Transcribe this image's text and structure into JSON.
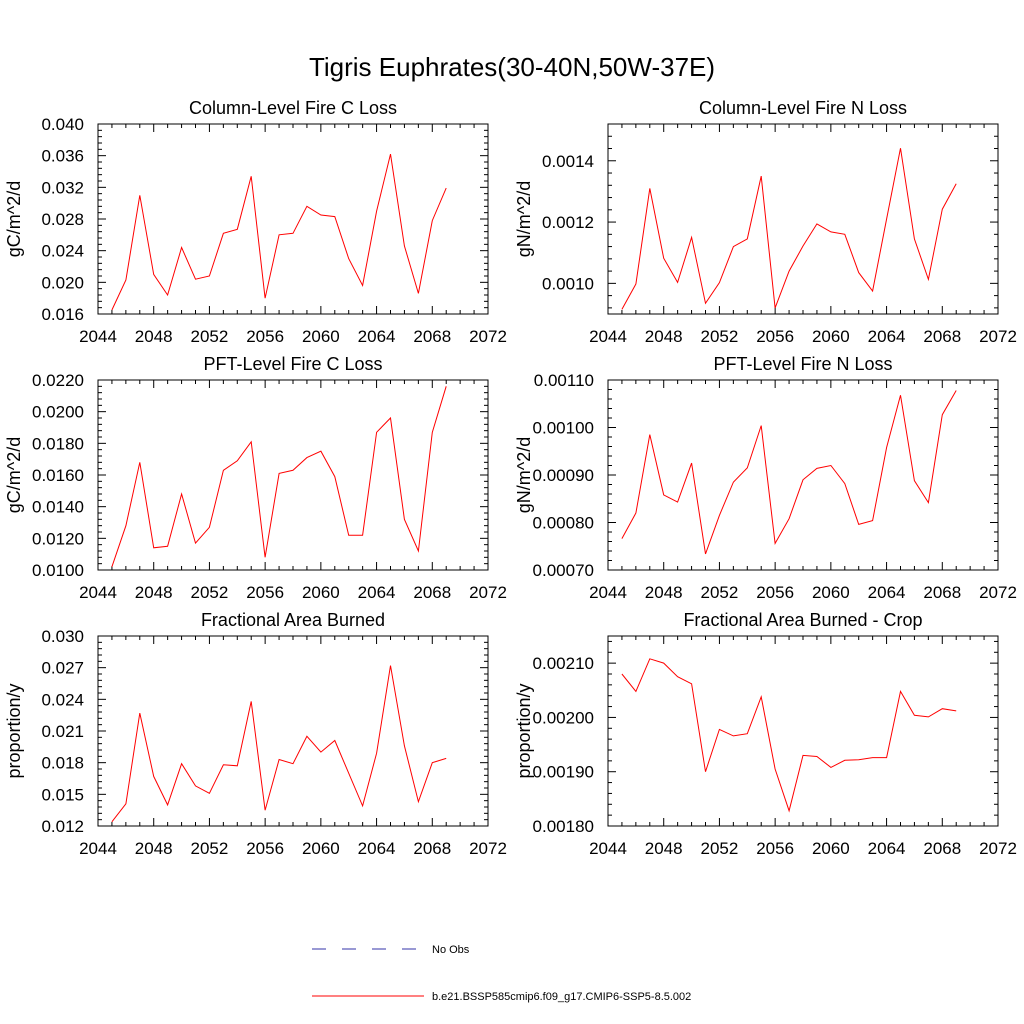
{
  "title": "Tigris Euphrates(30-40N,50W-37E)",
  "chart_data": [
    {
      "type": "line",
      "title": "Column-Level Fire C Loss",
      "ylabel": "gC/m^2/d",
      "xlim": [
        2044,
        2072
      ],
      "xticks": [
        "2044",
        "2048",
        "2052",
        "2056",
        "2060",
        "2064",
        "2068",
        "2072"
      ],
      "ylim": [
        0.016,
        0.04
      ],
      "yticks": [
        "0.016",
        "0.020",
        "0.024",
        "0.028",
        "0.032",
        "0.036",
        "0.040"
      ],
      "x": [
        2045,
        2046,
        2047,
        2048,
        2049,
        2050,
        2051,
        2052,
        2053,
        2054,
        2055,
        2056,
        2057,
        2058,
        2059,
        2060,
        2061,
        2062,
        2063,
        2064,
        2065,
        2066,
        2067,
        2068,
        2069
      ],
      "series": [
        {
          "name": "b.e21.BSSP585cmip6.f09_g17.CMIP6-SSP5-8.5.002",
          "color": "#ff0000",
          "values": [
            0.0165,
            0.0203,
            0.031,
            0.021,
            0.0184,
            0.0244,
            0.0204,
            0.0208,
            0.0262,
            0.0267,
            0.0334,
            0.018,
            0.026,
            0.0262,
            0.0296,
            0.0285,
            0.0283,
            0.023,
            0.0196,
            0.029,
            0.0362,
            0.0246,
            0.0186,
            0.0278,
            0.0319
          ]
        }
      ]
    },
    {
      "type": "line",
      "title": "Column-Level Fire N Loss",
      "ylabel": "gN/m^2/d",
      "xlim": [
        2044,
        2072
      ],
      "xticks": [
        "2044",
        "2048",
        "2052",
        "2056",
        "2060",
        "2064",
        "2068",
        "2072"
      ],
      "ylim": [
        0.0009,
        0.00152
      ],
      "yticks": [
        "0.0010",
        "0.0012",
        "0.0014"
      ],
      "ytick_values": [
        0.001,
        0.0012,
        0.0014
      ],
      "x": [
        2045,
        2046,
        2047,
        2048,
        2049,
        2050,
        2051,
        2052,
        2053,
        2054,
        2055,
        2056,
        2057,
        2058,
        2059,
        2060,
        2061,
        2062,
        2063,
        2064,
        2065,
        2066,
        2067,
        2068,
        2069
      ],
      "series": [
        {
          "name": "b.e21.BSSP585cmip6.f09_g17.CMIP6-SSP5-8.5.002",
          "color": "#ff0000",
          "values": [
            0.000915,
            0.000998,
            0.00131,
            0.001082,
            0.001003,
            0.00115,
            0.000935,
            0.001002,
            0.00112,
            0.001145,
            0.00135,
            0.00092,
            0.00104,
            0.001122,
            0.001194,
            0.001168,
            0.00116,
            0.001035,
            0.000975,
            0.00121,
            0.001441,
            0.001145,
            0.001013,
            0.001242,
            0.001325
          ]
        }
      ]
    },
    {
      "type": "line",
      "title": "PFT-Level Fire C Loss",
      "ylabel": "gC/m^2/d",
      "xlim": [
        2044,
        2072
      ],
      "xticks": [
        "2044",
        "2048",
        "2052",
        "2056",
        "2060",
        "2064",
        "2068",
        "2072"
      ],
      "ylim": [
        0.01,
        0.022
      ],
      "yticks": [
        "0.0100",
        "0.0120",
        "0.0140",
        "0.0160",
        "0.0180",
        "0.0200",
        "0.0220"
      ],
      "x": [
        2045,
        2046,
        2047,
        2048,
        2049,
        2050,
        2051,
        2052,
        2053,
        2054,
        2055,
        2056,
        2057,
        2058,
        2059,
        2060,
        2061,
        2062,
        2063,
        2064,
        2065,
        2066,
        2067,
        2068,
        2069
      ],
      "series": [
        {
          "name": "b.e21.BSSP585cmip6.f09_g17.CMIP6-SSP5-8.5.002",
          "color": "#ff0000",
          "values": [
            0.0102,
            0.0128,
            0.0168,
            0.0114,
            0.0115,
            0.0148,
            0.0117,
            0.0127,
            0.0163,
            0.0169,
            0.0181,
            0.0108,
            0.0161,
            0.0163,
            0.0171,
            0.0175,
            0.0159,
            0.0122,
            0.0122,
            0.0187,
            0.0196,
            0.0132,
            0.0112,
            0.0187,
            0.0216
          ]
        }
      ]
    },
    {
      "type": "line",
      "title": "PFT-Level Fire N Loss",
      "ylabel": "gN/m^2/d",
      "xlim": [
        2044,
        2072
      ],
      "xticks": [
        "2044",
        "2048",
        "2052",
        "2056",
        "2060",
        "2064",
        "2068",
        "2072"
      ],
      "ylim": [
        0.0007,
        0.0011
      ],
      "yticks": [
        "0.00070",
        "0.00080",
        "0.00090",
        "0.00100",
        "0.00110"
      ],
      "x": [
        2045,
        2046,
        2047,
        2048,
        2049,
        2050,
        2051,
        2052,
        2053,
        2054,
        2055,
        2056,
        2057,
        2058,
        2059,
        2060,
        2061,
        2062,
        2063,
        2064,
        2065,
        2066,
        2067,
        2068,
        2069
      ],
      "series": [
        {
          "name": "b.e21.BSSP585cmip6.f09_g17.CMIP6-SSP5-8.5.002",
          "color": "#ff0000",
          "values": [
            0.000766,
            0.00082,
            0.000985,
            0.000858,
            0.000843,
            0.000925,
            0.000734,
            0.000815,
            0.000885,
            0.000915,
            0.001004,
            0.000756,
            0.000808,
            0.00089,
            0.000914,
            0.00092,
            0.000882,
            0.000796,
            0.000804,
            0.000958,
            0.001068,
            0.000888,
            0.000842,
            0.001027,
            0.001078
          ]
        }
      ]
    },
    {
      "type": "line",
      "title": "Fractional Area Burned",
      "ylabel": "proportion/y",
      "xlim": [
        2044,
        2072
      ],
      "xticks": [
        "2044",
        "2048",
        "2052",
        "2056",
        "2060",
        "2064",
        "2068",
        "2072"
      ],
      "ylim": [
        0.012,
        0.03
      ],
      "yticks": [
        "0.012",
        "0.015",
        "0.018",
        "0.021",
        "0.024",
        "0.027",
        "0.030"
      ],
      "x": [
        2045,
        2046,
        2047,
        2048,
        2049,
        2050,
        2051,
        2052,
        2053,
        2054,
        2055,
        2056,
        2057,
        2058,
        2059,
        2060,
        2061,
        2062,
        2063,
        2064,
        2065,
        2066,
        2067,
        2068,
        2069
      ],
      "series": [
        {
          "name": "b.e21.BSSP585cmip6.f09_g17.CMIP6-SSP5-8.5.002",
          "color": "#ff0000",
          "values": [
            0.0124,
            0.0141,
            0.0227,
            0.0167,
            0.014,
            0.0179,
            0.0158,
            0.0151,
            0.0178,
            0.0177,
            0.0238,
            0.0135,
            0.0183,
            0.0179,
            0.0205,
            0.019,
            0.0201,
            0.017,
            0.0139,
            0.0189,
            0.0272,
            0.0196,
            0.0143,
            0.018,
            0.0184
          ]
        }
      ]
    },
    {
      "type": "line",
      "title": "Fractional Area Burned - Crop",
      "ylabel": "proportion/y",
      "xlim": [
        2044,
        2072
      ],
      "xticks": [
        "2044",
        "2048",
        "2052",
        "2056",
        "2060",
        "2064",
        "2068",
        "2072"
      ],
      "ylim": [
        0.0018,
        0.00215
      ],
      "yticks": [
        "0.00180",
        "0.00190",
        "0.00200",
        "0.00210"
      ],
      "ytick_values": [
        0.0018,
        0.0019,
        0.002,
        0.0021
      ],
      "x": [
        2045,
        2046,
        2047,
        2048,
        2049,
        2050,
        2051,
        2052,
        2053,
        2054,
        2055,
        2056,
        2057,
        2058,
        2059,
        2060,
        2061,
        2062,
        2063,
        2064,
        2065,
        2066,
        2067,
        2068,
        2069
      ],
      "series": [
        {
          "name": "b.e21.BSSP585cmip6.f09_g17.CMIP6-SSP5-8.5.002",
          "color": "#ff0000",
          "values": [
            0.00208,
            0.002048,
            0.002108,
            0.0021,
            0.002075,
            0.002062,
            0.0019,
            0.001978,
            0.001966,
            0.00197,
            0.002038,
            0.001905,
            0.001828,
            0.00193,
            0.001928,
            0.001908,
            0.001921,
            0.001922,
            0.001926,
            0.001926,
            0.002048,
            0.002004,
            0.002001,
            0.002016,
            0.002012
          ]
        }
      ]
    }
  ],
  "legend": {
    "placement": "bottom-center",
    "entries": [
      {
        "label": "No Obs",
        "color": "#3333aa",
        "style": "dashed"
      },
      {
        "label": "b.e21.BSSP585cmip6.f09_g17.CMIP6-SSP5-8.5.002",
        "color": "#ff0000",
        "style": "solid"
      }
    ]
  }
}
